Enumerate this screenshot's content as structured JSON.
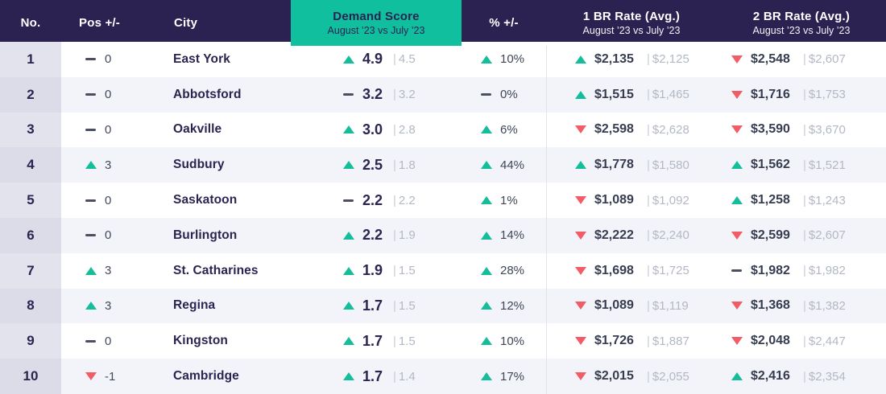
{
  "header": {
    "no": "No.",
    "pos": "Pos +/-",
    "city": "City",
    "demand_label": "Demand Score",
    "demand_sublabel": "August ’23 vs July ’23",
    "pct": "% +/-",
    "br1_label": "1 BR Rate (Avg.)",
    "br1_sublabel": "August ’23 vs July ’23",
    "br2_label": "2 BR Rate (Avg.)",
    "br2_sublabel": "August ’23 vs July ’23"
  },
  "separator": "|",
  "rows": [
    {
      "no": "1",
      "pos": {
        "dir": "flat",
        "value": "0"
      },
      "city": "East York",
      "demand": {
        "dir": "up",
        "value": "4.9",
        "prev": "4.5"
      },
      "pct": {
        "dir": "up",
        "value": "10%"
      },
      "br1": {
        "dir": "up",
        "value": "$2,135",
        "prev": "$2,125"
      },
      "br2": {
        "dir": "down",
        "value": "$2,548",
        "prev": "$2,607"
      }
    },
    {
      "no": "2",
      "pos": {
        "dir": "flat",
        "value": "0"
      },
      "city": "Abbotsford",
      "demand": {
        "dir": "flat",
        "value": "3.2",
        "prev": "3.2"
      },
      "pct": {
        "dir": "flat",
        "value": "0%"
      },
      "br1": {
        "dir": "up",
        "value": "$1,515",
        "prev": "$1,465"
      },
      "br2": {
        "dir": "down",
        "value": "$1,716",
        "prev": "$1,753"
      }
    },
    {
      "no": "3",
      "pos": {
        "dir": "flat",
        "value": "0"
      },
      "city": "Oakville",
      "demand": {
        "dir": "up",
        "value": "3.0",
        "prev": "2.8"
      },
      "pct": {
        "dir": "up",
        "value": "6%"
      },
      "br1": {
        "dir": "down",
        "value": "$2,598",
        "prev": "$2,628"
      },
      "br2": {
        "dir": "down",
        "value": "$3,590",
        "prev": "$3,670"
      }
    },
    {
      "no": "4",
      "pos": {
        "dir": "up",
        "value": "3"
      },
      "city": "Sudbury",
      "demand": {
        "dir": "up",
        "value": "2.5",
        "prev": "1.8"
      },
      "pct": {
        "dir": "up",
        "value": "44%"
      },
      "br1": {
        "dir": "up",
        "value": "$1,778",
        "prev": "$1,580"
      },
      "br2": {
        "dir": "up",
        "value": "$1,562",
        "prev": "$1,521"
      }
    },
    {
      "no": "5",
      "pos": {
        "dir": "flat",
        "value": "0"
      },
      "city": "Saskatoon",
      "demand": {
        "dir": "flat",
        "value": "2.2",
        "prev": "2.2"
      },
      "pct": {
        "dir": "up",
        "value": "1%"
      },
      "br1": {
        "dir": "down",
        "value": "$1,089",
        "prev": "$1,092"
      },
      "br2": {
        "dir": "up",
        "value": "$1,258",
        "prev": "$1,243"
      }
    },
    {
      "no": "6",
      "pos": {
        "dir": "flat",
        "value": "0"
      },
      "city": "Burlington",
      "demand": {
        "dir": "up",
        "value": "2.2",
        "prev": "1.9"
      },
      "pct": {
        "dir": "up",
        "value": "14%"
      },
      "br1": {
        "dir": "down",
        "value": "$2,222",
        "prev": "$2,240"
      },
      "br2": {
        "dir": "down",
        "value": "$2,599",
        "prev": "$2,607"
      }
    },
    {
      "no": "7",
      "pos": {
        "dir": "up",
        "value": "3"
      },
      "city": "St. Catharines",
      "demand": {
        "dir": "up",
        "value": "1.9",
        "prev": "1.5"
      },
      "pct": {
        "dir": "up",
        "value": "28%"
      },
      "br1": {
        "dir": "down",
        "value": "$1,698",
        "prev": "$1,725"
      },
      "br2": {
        "dir": "flat",
        "value": "$1,982",
        "prev": "$1,982"
      }
    },
    {
      "no": "8",
      "pos": {
        "dir": "up",
        "value": "3"
      },
      "city": "Regina",
      "demand": {
        "dir": "up",
        "value": "1.7",
        "prev": "1.5"
      },
      "pct": {
        "dir": "up",
        "value": "12%"
      },
      "br1": {
        "dir": "down",
        "value": "$1,089",
        "prev": "$1,119"
      },
      "br2": {
        "dir": "down",
        "value": "$1,368",
        "prev": "$1,382"
      }
    },
    {
      "no": "9",
      "pos": {
        "dir": "flat",
        "value": "0"
      },
      "city": "Kingston",
      "demand": {
        "dir": "up",
        "value": "1.7",
        "prev": "1.5"
      },
      "pct": {
        "dir": "up",
        "value": "10%"
      },
      "br1": {
        "dir": "down",
        "value": "$1,726",
        "prev": "$1,887"
      },
      "br2": {
        "dir": "down",
        "value": "$2,048",
        "prev": "$2,447"
      }
    },
    {
      "no": "10",
      "pos": {
        "dir": "down",
        "value": "-1"
      },
      "city": "Cambridge",
      "demand": {
        "dir": "up",
        "value": "1.7",
        "prev": "1.4"
      },
      "pct": {
        "dir": "up",
        "value": "17%"
      },
      "br1": {
        "dir": "down",
        "value": "$2,015",
        "prev": "$2,055"
      },
      "br2": {
        "dir": "up",
        "value": "$2,416",
        "prev": "$2,354"
      }
    }
  ],
  "colors": {
    "header_bg": "#2B2252",
    "accent_teal": "#10BF9E",
    "up_green": "#14BE9B",
    "down_red": "#F25C66",
    "flat_slate": "#49505F",
    "row_alt_bg": "#F3F4F9",
    "text_navy": "#2A2550",
    "prev_gray": "#B2B8C4"
  }
}
